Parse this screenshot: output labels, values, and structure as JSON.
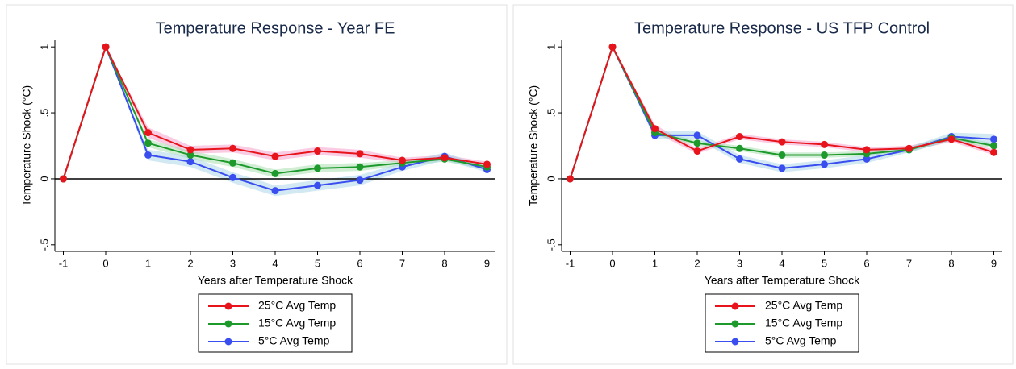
{
  "chart_data": [
    {
      "type": "line",
      "title": "Temperature Response - Year FE",
      "x_label": "Years after Temperature Shock",
      "y_label": "Temperature Shock (°C)",
      "x": [
        -1,
        0,
        1,
        2,
        3,
        4,
        5,
        6,
        7,
        8,
        9
      ],
      "xlim": [
        -1.2,
        9.2
      ],
      "xticks": [
        -1,
        0,
        1,
        2,
        3,
        4,
        5,
        6,
        7,
        8,
        9
      ],
      "ylim": [
        -0.55,
        1.05
      ],
      "yticks": [
        {
          "value": -0.5,
          "label": "-.5"
        },
        0,
        {
          "value": 0.5,
          "label": ".5"
        },
        1
      ],
      "reference_line": 0,
      "series": [
        {
          "name": "25°C Avg Temp",
          "color": "#e8141c",
          "band_color": "#f58fc0",
          "values": [
            0,
            1,
            0.35,
            0.22,
            0.23,
            0.17,
            0.21,
            0.19,
            0.14,
            0.16,
            0.11
          ],
          "lower": [
            null,
            1,
            0.31,
            0.19,
            0.2,
            0.14,
            0.18,
            0.16,
            0.12,
            0.14,
            0.09
          ],
          "upper": [
            null,
            1,
            0.39,
            0.25,
            0.26,
            0.2,
            0.24,
            0.22,
            0.16,
            0.18,
            0.13
          ]
        },
        {
          "name": "15°C Avg Temp",
          "color": "#1e9a2c",
          "band_color": "#9ad9a2",
          "values": [
            0,
            1,
            0.27,
            0.18,
            0.12,
            0.04,
            0.08,
            0.09,
            0.12,
            0.15,
            0.09
          ],
          "lower": [
            null,
            1,
            0.24,
            0.15,
            0.09,
            0.01,
            0.05,
            0.06,
            0.1,
            0.13,
            0.07
          ],
          "upper": [
            null,
            1,
            0.3,
            0.21,
            0.15,
            0.07,
            0.11,
            0.12,
            0.14,
            0.17,
            0.11
          ]
        },
        {
          "name": "5°C Avg Temp",
          "color": "#3a4ef0",
          "band_color": "#9ccfe4",
          "values": [
            0,
            1,
            0.18,
            0.13,
            0.01,
            -0.09,
            -0.05,
            -0.01,
            0.09,
            0.17,
            0.07
          ],
          "lower": [
            null,
            1,
            0.14,
            0.09,
            -0.03,
            -0.13,
            -0.09,
            -0.05,
            0.06,
            0.14,
            0.05
          ],
          "upper": [
            null,
            1,
            0.22,
            0.17,
            0.05,
            -0.05,
            -0.01,
            0.03,
            0.12,
            0.2,
            0.09
          ]
        }
      ]
    },
    {
      "type": "line",
      "title": "Temperature Response - US TFP Control",
      "x_label": "Years after Temperature Shock",
      "y_label": "Temperature Shock (°C)",
      "x": [
        -1,
        0,
        1,
        2,
        3,
        4,
        5,
        6,
        7,
        8,
        9
      ],
      "xlim": [
        -1.2,
        9.2
      ],
      "xticks": [
        -1,
        0,
        1,
        2,
        3,
        4,
        5,
        6,
        7,
        8,
        9
      ],
      "ylim": [
        -0.55,
        1.05
      ],
      "yticks": [
        {
          "value": -0.5,
          "label": "-.5"
        },
        0,
        {
          "value": 0.5,
          "label": ".5"
        },
        1
      ],
      "reference_line": 0,
      "series": [
        {
          "name": "25°C Avg Temp",
          "color": "#e8141c",
          "band_color": "#f58fc0",
          "values": [
            0,
            1,
            0.38,
            0.21,
            0.32,
            0.28,
            0.26,
            0.22,
            0.23,
            0.3,
            0.2
          ],
          "lower": [
            null,
            1,
            0.35,
            0.19,
            0.3,
            0.26,
            0.24,
            0.2,
            0.21,
            0.28,
            0.18
          ],
          "upper": [
            null,
            1,
            0.41,
            0.23,
            0.34,
            0.3,
            0.28,
            0.24,
            0.25,
            0.32,
            0.22
          ]
        },
        {
          "name": "15°C Avg Temp",
          "color": "#1e9a2c",
          "band_color": "#9ad9a2",
          "values": [
            0,
            1,
            0.35,
            0.27,
            0.23,
            0.18,
            0.18,
            0.19,
            0.22,
            0.31,
            0.25
          ],
          "lower": [
            null,
            1,
            0.33,
            0.25,
            0.21,
            0.16,
            0.16,
            0.17,
            0.2,
            0.29,
            0.23
          ],
          "upper": [
            null,
            1,
            0.37,
            0.29,
            0.25,
            0.2,
            0.2,
            0.21,
            0.24,
            0.33,
            0.27
          ]
        },
        {
          "name": "5°C Avg Temp",
          "color": "#3a4ef0",
          "band_color": "#9ccfe4",
          "values": [
            0,
            1,
            0.33,
            0.33,
            0.15,
            0.08,
            0.11,
            0.15,
            0.22,
            0.32,
            0.3
          ],
          "lower": [
            null,
            1,
            0.3,
            0.3,
            0.12,
            0.05,
            0.08,
            0.12,
            0.2,
            0.29,
            0.26
          ],
          "upper": [
            null,
            1,
            0.36,
            0.36,
            0.18,
            0.11,
            0.14,
            0.18,
            0.24,
            0.35,
            0.34
          ]
        }
      ]
    }
  ]
}
